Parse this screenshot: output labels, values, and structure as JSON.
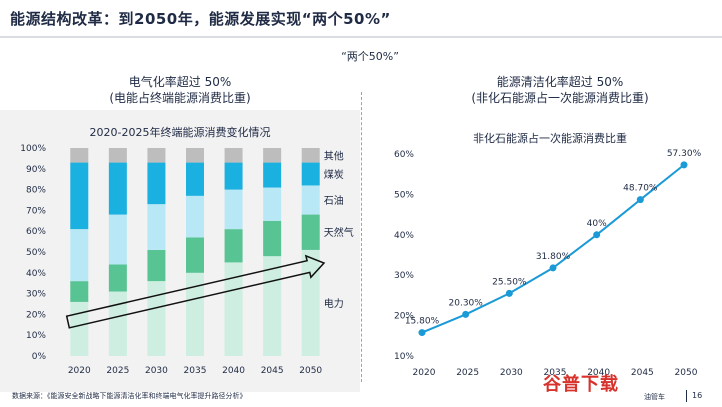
{
  "header": {
    "title": "能源结构改革：到2050年，能源发展实现“两个50%”",
    "slogan": "“两个50%”"
  },
  "left_panel": {
    "headline": "电气化率超过 50%",
    "subheadline": "(电能占终端能源消费比重)",
    "chart_title": "2020-2025年终端能源消费变化情况"
  },
  "right_panel": {
    "headline": "能源清洁化率超过 50%",
    "subheadline": "(非化石能源占一次能源消费比重)",
    "chart_title": "非化石能源占一次能源消费比重"
  },
  "chart_data": [
    {
      "type": "bar",
      "stacked": true,
      "categories": [
        "2020",
        "2025",
        "2030",
        "2035",
        "2040",
        "2045",
        "2050"
      ],
      "ylim": [
        0,
        100
      ],
      "yticks": [
        "0%",
        "10%",
        "20%",
        "30%",
        "40%",
        "50%",
        "60%",
        "70%",
        "80%",
        "90%",
        "100%"
      ],
      "series": [
        {
          "name": "电力",
          "color": "#cdeee0",
          "values": [
            26,
            31,
            36,
            40,
            45,
            48,
            51
          ]
        },
        {
          "name": "天然气",
          "color": "#58c393",
          "values": [
            10,
            13,
            15,
            17,
            16,
            17,
            17
          ]
        },
        {
          "name": "石油",
          "color": "#b8e8f5",
          "values": [
            25,
            24,
            22,
            20,
            19,
            16,
            14
          ]
        },
        {
          "name": "煤炭",
          "color": "#1ab0e0",
          "values": [
            32,
            25,
            20,
            16,
            13,
            12,
            11
          ]
        },
        {
          "name": "其他",
          "color": "#bdbdbd",
          "values": [
            7,
            7,
            7,
            7,
            7,
            7,
            7
          ]
        }
      ],
      "grid": false,
      "legend": "right"
    },
    {
      "type": "line",
      "x": [
        "2020",
        "2025",
        "2030",
        "2035",
        "2040",
        "2045",
        "2050"
      ],
      "values": [
        15.8,
        20.3,
        25.5,
        31.8,
        40,
        48.7,
        57.3
      ],
      "labels": [
        "15.80%",
        "20.30%",
        "25.50%",
        "31.80%",
        "40%",
        "48.70%",
        "57.30%"
      ],
      "ylim": [
        10,
        60
      ],
      "yticks": [
        "10%",
        "20%",
        "30%",
        "40%",
        "50%",
        "60%"
      ],
      "color": "#1a9ad6",
      "grid": false
    }
  ],
  "footer": {
    "source": "数据来源：《能源安全新战略下能源清洁化率和终端电气化率提升路径分析》",
    "page": "16",
    "watermark": "谷普下载",
    "watermark_small": "油管车"
  }
}
